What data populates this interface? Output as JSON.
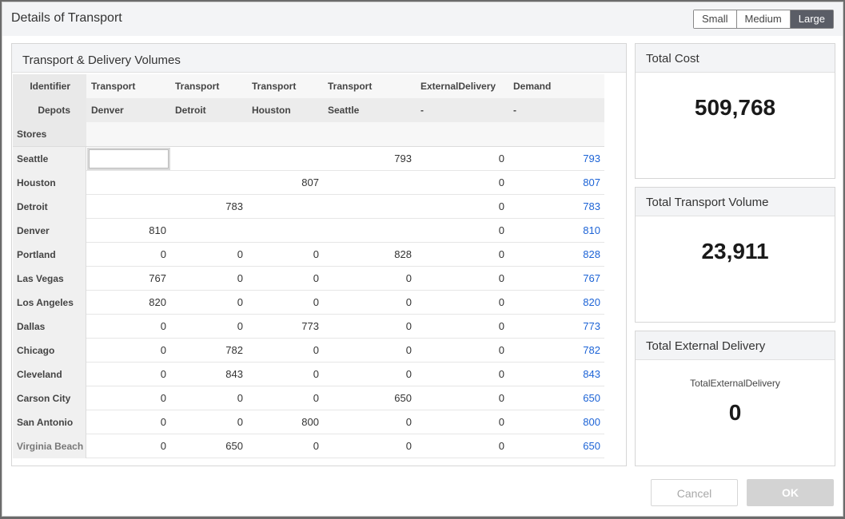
{
  "dialog": {
    "title": "Details of Transport"
  },
  "size_toggle": {
    "small": "Small",
    "medium": "Medium",
    "large": "Large",
    "selected": "Large"
  },
  "table": {
    "title": "Transport & Delivery Volumes",
    "header_labels": {
      "identifier": "Identifier",
      "depots": "Depots",
      "stores": "Stores"
    },
    "columns": [
      {
        "identifier": "Transport",
        "depot": "Denver"
      },
      {
        "identifier": "Transport",
        "depot": "Detroit"
      },
      {
        "identifier": "Transport",
        "depot": "Houston"
      },
      {
        "identifier": "Transport",
        "depot": "Seattle"
      },
      {
        "identifier": "ExternalDelivery",
        "depot": "-"
      },
      {
        "identifier": "Demand",
        "depot": "-"
      }
    ],
    "rows": [
      {
        "store": "Seattle",
        "values": [
          "",
          "",
          "",
          "793",
          "0",
          "793"
        ]
      },
      {
        "store": "Houston",
        "values": [
          "",
          "",
          "807",
          "",
          "0",
          "807"
        ]
      },
      {
        "store": "Detroit",
        "values": [
          "",
          "783",
          "",
          "",
          "0",
          "783"
        ]
      },
      {
        "store": "Denver",
        "values": [
          "810",
          "",
          "",
          "",
          "0",
          "810"
        ]
      },
      {
        "store": "Portland",
        "values": [
          "0",
          "0",
          "0",
          "828",
          "0",
          "828"
        ]
      },
      {
        "store": "Las Vegas",
        "values": [
          "767",
          "0",
          "0",
          "0",
          "0",
          "767"
        ]
      },
      {
        "store": "Los Angeles",
        "values": [
          "820",
          "0",
          "0",
          "0",
          "0",
          "820"
        ]
      },
      {
        "store": "Dallas",
        "values": [
          "0",
          "0",
          "773",
          "0",
          "0",
          "773"
        ]
      },
      {
        "store": "Chicago",
        "values": [
          "0",
          "782",
          "0",
          "0",
          "0",
          "782"
        ]
      },
      {
        "store": "Cleveland",
        "values": [
          "0",
          "843",
          "0",
          "0",
          "0",
          "843"
        ]
      },
      {
        "store": "Carson City",
        "values": [
          "0",
          "0",
          "0",
          "650",
          "0",
          "650"
        ]
      },
      {
        "store": "San Antonio",
        "values": [
          "0",
          "0",
          "800",
          "0",
          "0",
          "800"
        ]
      },
      {
        "store": "Virginia Beach",
        "values": [
          "0",
          "650",
          "0",
          "0",
          "0",
          "650"
        ]
      }
    ]
  },
  "kpis": {
    "total_cost": {
      "title": "Total Cost",
      "value": "509,768"
    },
    "total_transport_volume": {
      "title": "Total Transport Volume",
      "value": "23,911"
    },
    "total_external_delivery": {
      "title": "Total External Delivery",
      "label": "TotalExternalDelivery",
      "value": "0"
    }
  },
  "buttons": {
    "cancel": "Cancel",
    "ok": "OK"
  },
  "colors": {
    "demand_link": "#1c63d6",
    "active_toggle": "#5a5d66"
  }
}
